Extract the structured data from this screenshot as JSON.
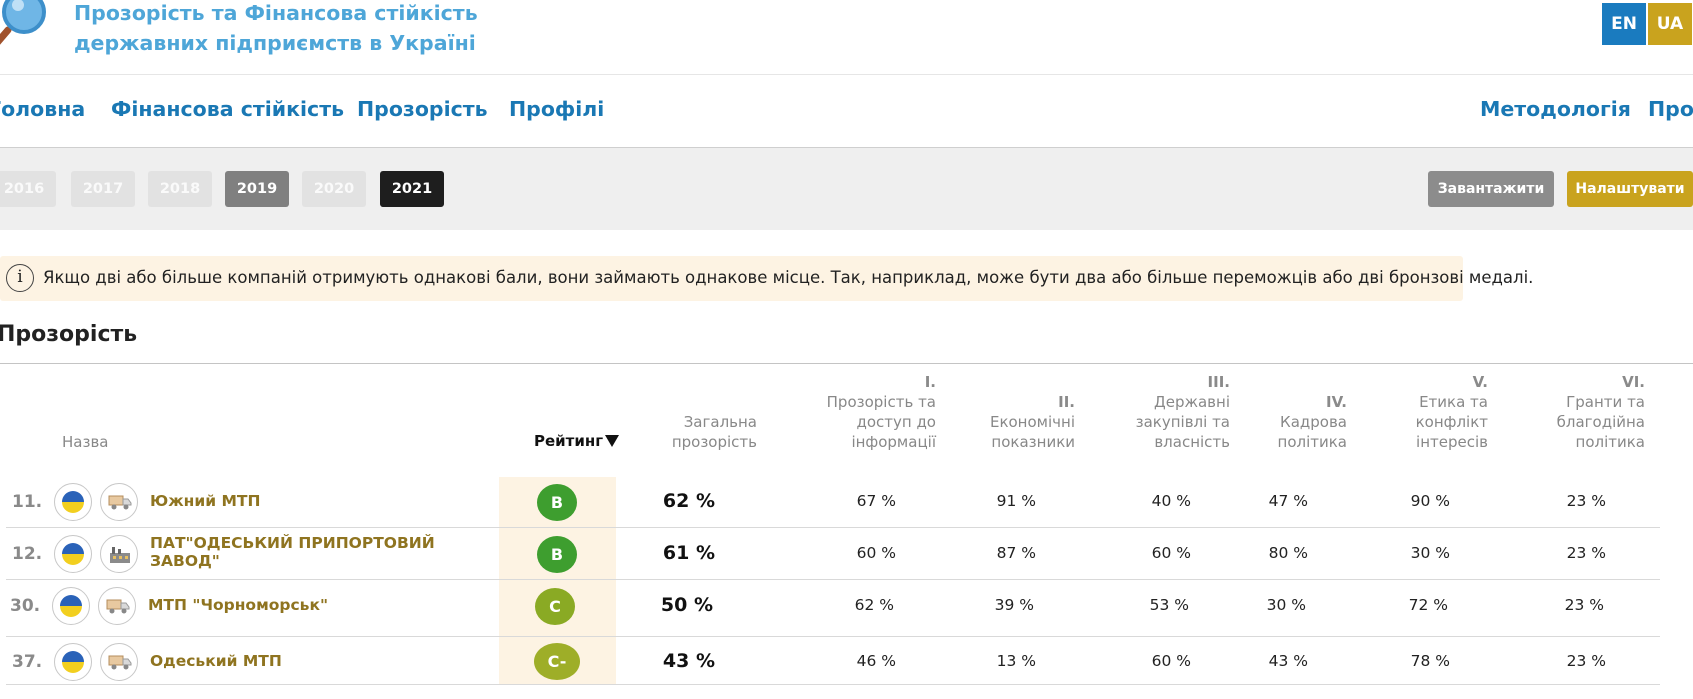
{
  "header": {
    "title_line1": "Прозорість та Фінансова стійкість",
    "title_line2": "державних підприємств в Україні",
    "lang_en": "EN",
    "lang_ua": "UA"
  },
  "nav": {
    "items": [
      "Головна",
      "Фінансова стійкість",
      "Прозорість",
      "Профілі"
    ],
    "right_items": [
      "Методологія",
      "Про"
    ]
  },
  "years": [
    "2016",
    "2017",
    "2018",
    "2019",
    "2020",
    "2021"
  ],
  "actions": {
    "download": "Завантажити",
    "settings": "Налаштувати"
  },
  "notice": {
    "icon_label": "i",
    "text": "Якщо дві або більше компаній отримують однакові бали, вони займають однакове місце. Так, наприклад, може бути два або більше переможців або дві бронзові медалі."
  },
  "section": {
    "title": "Прозорість"
  },
  "table": {
    "headers": {
      "name": "Назва",
      "rating": "Рейтинг",
      "total_l1": "Загальна",
      "total_l2": "прозорість",
      "c1_num": "I.",
      "c1_l1": "Прозорість та",
      "c1_l2": "доступ до",
      "c1_l3": "інформації",
      "c2_num": "II.",
      "c2_l1": "Економічні",
      "c2_l2": "показники",
      "c3_num": "III.",
      "c3_l1": "Державні",
      "c3_l2": "закупівлі та",
      "c3_l3": "власність",
      "c4_num": "IV.",
      "c4_l1": "Кадрова",
      "c4_l2": "політика",
      "c5_num": "V.",
      "c5_l1": "Етика та",
      "c5_l2": "конфлікт",
      "c5_l3": "інтересів",
      "c6_num": "VI.",
      "c6_l1": "Гранти та",
      "c6_l2": "благодійна",
      "c6_l3": "політика"
    },
    "rows": [
      {
        "rank": "11.",
        "name_l1": "Южний МТП",
        "name_l2": "",
        "rating": "B",
        "total": "62 %",
        "c1": "67 %",
        "c2": "91 %",
        "c3": "40 %",
        "c4": "47 %",
        "c5": "90 %",
        "c6": "23 %",
        "sector_icon": "truck-icon"
      },
      {
        "rank": "12.",
        "name_l1": "ПАТ\"ОДЕСЬКИЙ ПРИПОРТОВИЙ",
        "name_l2": "ЗАВОД\"",
        "rating": "B",
        "total": "61 %",
        "c1": "60 %",
        "c2": "87 %",
        "c3": "60 %",
        "c4": "80 %",
        "c5": "30 %",
        "c6": "23 %",
        "sector_icon": "factory-icon"
      },
      {
        "rank": "30.",
        "name_l1": "МТП \"Чорноморськ\"",
        "name_l2": "",
        "rating": "C",
        "total": "50 %",
        "c1": "62 %",
        "c2": "39 %",
        "c3": "53 %",
        "c4": "30 %",
        "c5": "72 %",
        "c6": "23 %",
        "sector_icon": "truck-icon"
      },
      {
        "rank": "37.",
        "name_l1": "Одеський МТП",
        "name_l2": "",
        "rating": "C-",
        "total": "43 %",
        "c1": "46 %",
        "c2": "13 %",
        "c3": "60 %",
        "c4": "43 %",
        "c5": "78 %",
        "c6": "23 %",
        "sector_icon": "truck-icon"
      }
    ]
  },
  "colors": {
    "brand_blue": "#1a78b4",
    "title_blue": "#4ea6d8",
    "gold": "#c9a31e",
    "rating_b": "#3e9e2f",
    "rating_c": "#8aaa24",
    "company_text": "#8f7420",
    "notice_bg": "#fdf3e3"
  }
}
